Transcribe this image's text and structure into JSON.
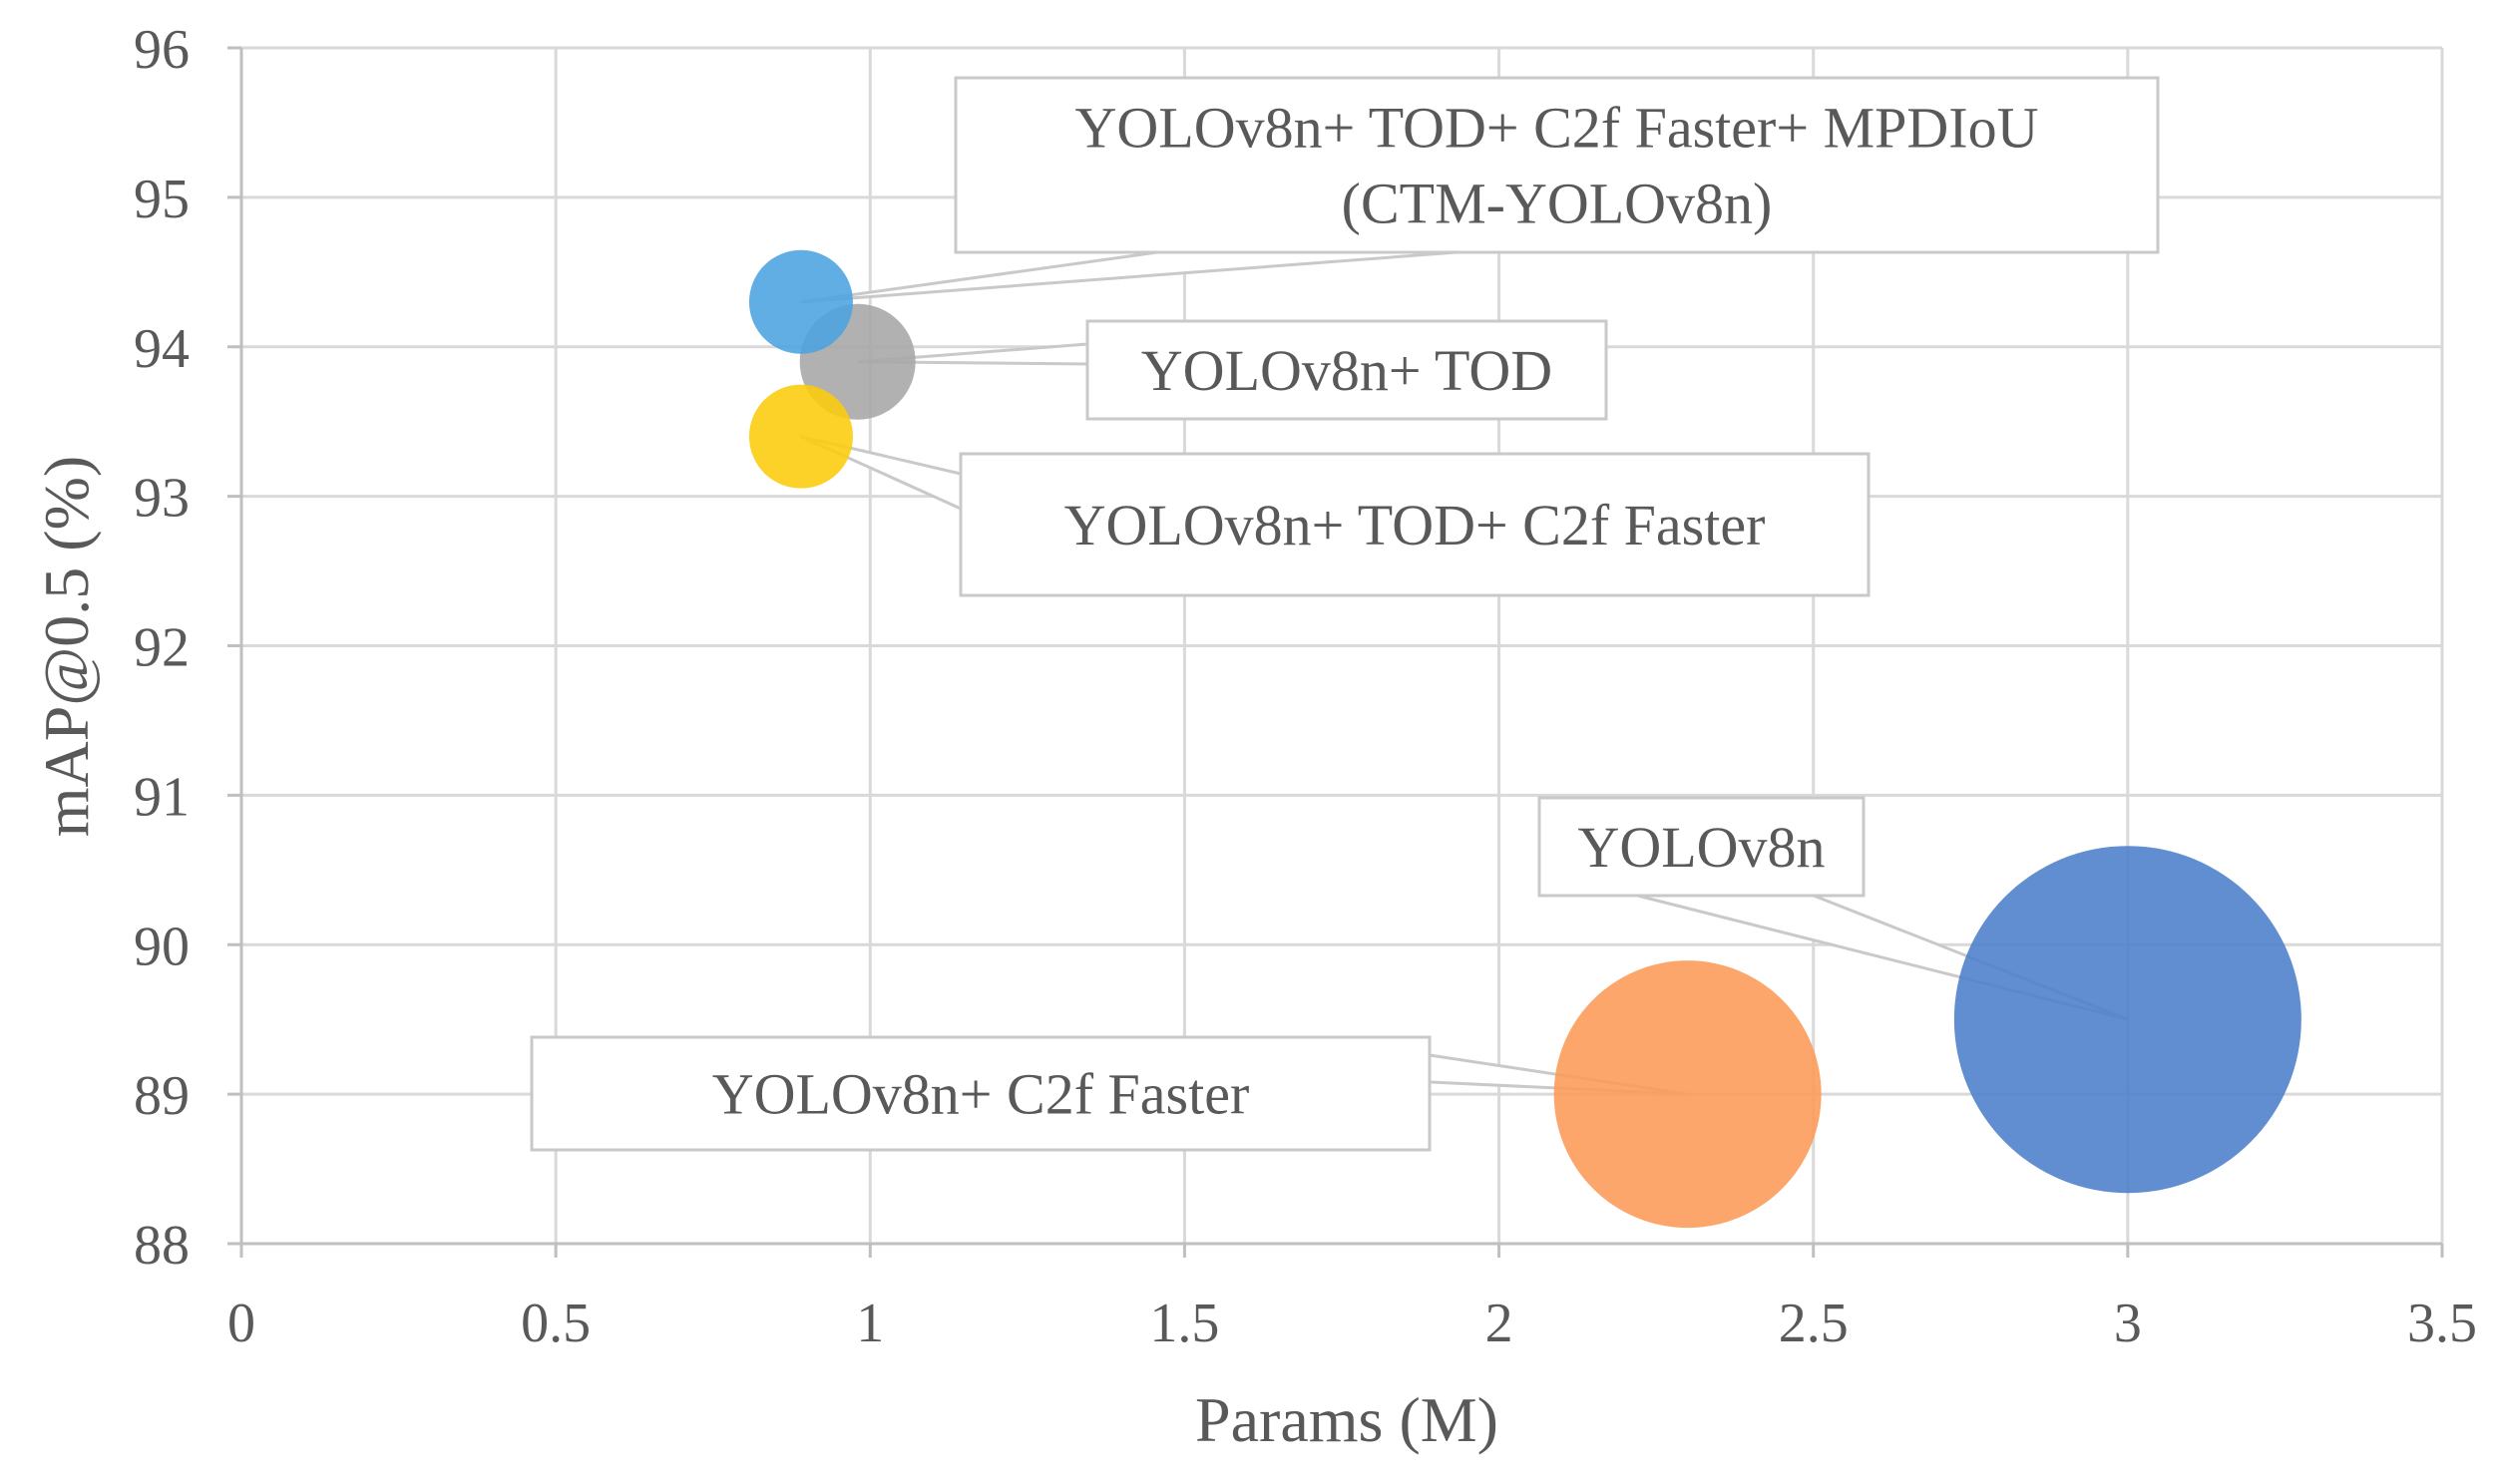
{
  "chart_data": {
    "type": "scatter",
    "xlabel": "Params (M)",
    "ylabel": "mAP@0.5 (%)",
    "xlim": [
      0,
      3.5
    ],
    "ylim": [
      88,
      96
    ],
    "xticks": [
      "0",
      "0.5",
      "1",
      "1.5",
      "2",
      "2.5",
      "3",
      "3.5"
    ],
    "yticks": [
      "88",
      "89",
      "90",
      "91",
      "92",
      "93",
      "94",
      "95",
      "96"
    ],
    "grid": true,
    "legend": "none",
    "bubble_size_meaning": "relative bubble size",
    "points": [
      {
        "label_lines": [
          "YOLOv8n"
        ],
        "x": 3.0,
        "y": 89.5,
        "size": 8.7,
        "color": "#4a7ecb"
      },
      {
        "label_lines": [
          "YOLOv8n+ C2f Faster"
        ],
        "x": 2.3,
        "y": 89.0,
        "size": 6.7,
        "color": "#fd9a58"
      },
      {
        "label_lines": [
          "YOLOv8n+ TOD"
        ],
        "x": 0.98,
        "y": 93.9,
        "size": 2.9,
        "color": "#a6a6a6"
      },
      {
        "label_lines": [
          "YOLOv8n+ TOD+ C2f Faster"
        ],
        "x": 0.89,
        "y": 93.4,
        "size": 2.6,
        "color": "#fccb0a"
      },
      {
        "label_lines": [
          "YOLOv8n+ TOD+ C2f Faster+ MPDIoU",
          "(CTM-YOLOv8n)"
        ],
        "x": 0.89,
        "y": 94.3,
        "size": 2.6,
        "color": "#4aa3df"
      }
    ]
  }
}
